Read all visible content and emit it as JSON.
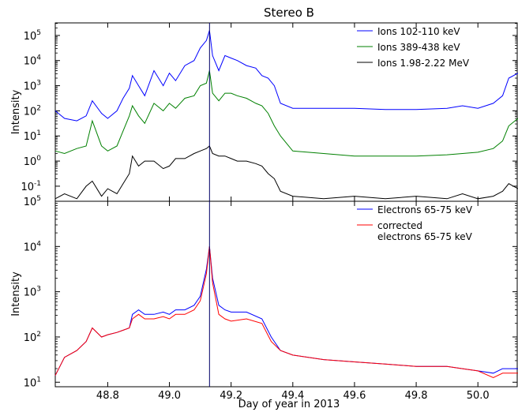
{
  "chart_data": {
    "title": "Stereo B",
    "xlabel": "Day of year in 2013",
    "x_range": [
      48.63,
      50.13
    ],
    "x_ticks": [
      "48.8",
      "49.0",
      "49.2",
      "49.4",
      "49.6",
      "49.8",
      "50.0"
    ],
    "x_tick_values": [
      48.8,
      49.0,
      49.2,
      49.4,
      49.6,
      49.8,
      50.0
    ],
    "vertical_marker_x": 49.13,
    "panels": [
      {
        "type": "line",
        "ylabel": "Intensity",
        "yscale": "log",
        "ylim_log10": [
          -1.6,
          5.5
        ],
        "y_ticks": [
          {
            "base": "10",
            "exp": "5",
            "log": 5
          },
          {
            "base": "10",
            "exp": "4",
            "log": 4
          },
          {
            "base": "10",
            "exp": "3",
            "log": 3
          },
          {
            "base": "10",
            "exp": "2",
            "log": 2
          },
          {
            "base": "10",
            "exp": "1",
            "log": 1
          },
          {
            "base": "10",
            "exp": "0",
            "log": 0
          },
          {
            "base": "10",
            "exp": "-1",
            "log": -1
          }
        ],
        "legend_position": "top-right",
        "series": [
          {
            "name": "Ions 102-110 keV",
            "color": "#0000ff",
            "x": [
              48.63,
              48.66,
              48.7,
              48.73,
              48.75,
              48.78,
              48.8,
              48.83,
              48.85,
              48.87,
              48.88,
              48.9,
              48.92,
              48.95,
              48.98,
              49.0,
              49.02,
              49.05,
              49.08,
              49.1,
              49.12,
              49.13,
              49.14,
              49.16,
              49.18,
              49.2,
              49.22,
              49.25,
              49.28,
              49.3,
              49.32,
              49.34,
              49.36,
              49.4,
              49.5,
              49.6,
              49.7,
              49.8,
              49.9,
              49.95,
              50.0,
              50.05,
              50.08,
              50.1,
              50.13
            ],
            "y_log10": [
              2.0,
              1.7,
              1.6,
              1.8,
              2.4,
              1.9,
              1.7,
              2.0,
              2.5,
              2.9,
              3.4,
              3.0,
              2.6,
              3.6,
              3.0,
              3.5,
              3.2,
              3.8,
              4.0,
              4.5,
              4.8,
              5.2,
              4.2,
              3.6,
              4.2,
              4.1,
              4.0,
              3.8,
              3.7,
              3.4,
              3.3,
              3.0,
              2.3,
              2.1,
              2.1,
              2.1,
              2.05,
              2.05,
              2.1,
              2.2,
              2.1,
              2.3,
              2.6,
              3.3,
              3.5
            ]
          },
          {
            "name": "Ions 389-438 keV",
            "color": "#008000",
            "x": [
              48.63,
              48.66,
              48.7,
              48.73,
              48.75,
              48.78,
              48.8,
              48.83,
              48.85,
              48.87,
              48.88,
              48.9,
              48.92,
              48.95,
              48.98,
              49.0,
              49.02,
              49.05,
              49.08,
              49.1,
              49.12,
              49.13,
              49.14,
              49.16,
              49.18,
              49.2,
              49.22,
              49.25,
              49.28,
              49.3,
              49.32,
              49.34,
              49.36,
              49.4,
              49.5,
              49.6,
              49.7,
              49.8,
              49.9,
              49.95,
              50.0,
              50.05,
              50.08,
              50.1,
              50.13
            ],
            "y_log10": [
              0.4,
              0.3,
              0.5,
              0.6,
              1.6,
              0.6,
              0.4,
              0.6,
              1.2,
              1.8,
              2.2,
              1.8,
              1.5,
              2.3,
              2.0,
              2.3,
              2.1,
              2.5,
              2.6,
              3.0,
              3.1,
              3.6,
              2.7,
              2.4,
              2.7,
              2.7,
              2.6,
              2.5,
              2.3,
              2.2,
              1.9,
              1.4,
              1.0,
              0.4,
              0.3,
              0.2,
              0.2,
              0.2,
              0.25,
              0.3,
              0.35,
              0.5,
              0.8,
              1.4,
              1.7
            ]
          },
          {
            "name": "Ions 1.98-2.22 MeV",
            "color": "#000000",
            "x": [
              48.63,
              48.66,
              48.7,
              48.73,
              48.75,
              48.78,
              48.8,
              48.83,
              48.85,
              48.87,
              48.88,
              48.9,
              48.92,
              48.95,
              48.98,
              49.0,
              49.02,
              49.05,
              49.08,
              49.1,
              49.12,
              49.13,
              49.14,
              49.16,
              49.18,
              49.2,
              49.22,
              49.25,
              49.28,
              49.3,
              49.32,
              49.34,
              49.36,
              49.4,
              49.5,
              49.6,
              49.7,
              49.8,
              49.9,
              49.95,
              50.0,
              50.05,
              50.08,
              50.1,
              50.13
            ],
            "y_log10": [
              -1.5,
              -1.3,
              -1.5,
              -1.0,
              -0.8,
              -1.4,
              -1.1,
              -1.3,
              -0.9,
              -0.5,
              0.2,
              -0.2,
              0.0,
              0.0,
              -0.3,
              -0.2,
              0.1,
              0.1,
              0.3,
              0.4,
              0.5,
              0.6,
              0.3,
              0.2,
              0.2,
              0.1,
              0.0,
              0.0,
              -0.1,
              -0.2,
              -0.5,
              -0.7,
              -1.2,
              -1.4,
              -1.5,
              -1.4,
              -1.5,
              -1.4,
              -1.5,
              -1.3,
              -1.5,
              -1.4,
              -1.2,
              -0.9,
              -1.1
            ]
          }
        ]
      },
      {
        "type": "line",
        "ylabel": "Intensity",
        "yscale": "log",
        "ylim_log10": [
          0.9,
          5.0
        ],
        "y_ticks": [
          {
            "base": "10",
            "exp": "5",
            "log": 5
          },
          {
            "base": "10",
            "exp": "4",
            "log": 4
          },
          {
            "base": "10",
            "exp": "3",
            "log": 3
          },
          {
            "base": "10",
            "exp": "2",
            "log": 2
          },
          {
            "base": "10",
            "exp": "1",
            "log": 1
          }
        ],
        "legend_position": "top-right",
        "series": [
          {
            "name": "Electrons 65-75 keV",
            "color": "#0000ff",
            "x": [
              48.63,
              48.66,
              48.7,
              48.73,
              48.75,
              48.78,
              48.8,
              48.83,
              48.85,
              48.87,
              48.88,
              48.9,
              48.92,
              48.95,
              48.98,
              49.0,
              49.02,
              49.05,
              49.08,
              49.1,
              49.12,
              49.13,
              49.14,
              49.16,
              49.18,
              49.2,
              49.25,
              49.3,
              49.33,
              49.36,
              49.4,
              49.5,
              49.6,
              49.7,
              49.8,
              49.9,
              49.95,
              50.0,
              50.05,
              50.08,
              50.1,
              50.13
            ],
            "y_log10": [
              1.15,
              1.55,
              1.7,
              1.9,
              2.2,
              2.0,
              2.05,
              2.1,
              2.15,
              2.2,
              2.5,
              2.6,
              2.5,
              2.5,
              2.55,
              2.5,
              2.6,
              2.6,
              2.7,
              2.9,
              3.5,
              4.0,
              3.3,
              2.7,
              2.6,
              2.55,
              2.55,
              2.4,
              2.0,
              1.7,
              1.6,
              1.5,
              1.45,
              1.4,
              1.35,
              1.35,
              1.3,
              1.25,
              1.2,
              1.3,
              1.3,
              1.3
            ]
          },
          {
            "name": "corrected electrons 65-75 keV",
            "label_lines": [
              "corrected",
              "electrons 65-75 keV"
            ],
            "color": "#ff0000",
            "x": [
              48.63,
              48.66,
              48.7,
              48.73,
              48.75,
              48.78,
              48.8,
              48.83,
              48.85,
              48.87,
              48.88,
              48.9,
              48.92,
              48.95,
              48.98,
              49.0,
              49.02,
              49.05,
              49.08,
              49.1,
              49.12,
              49.13,
              49.14,
              49.16,
              49.18,
              49.2,
              49.25,
              49.3,
              49.33,
              49.36,
              49.4,
              49.5,
              49.6,
              49.7,
              49.8,
              49.9,
              49.95,
              50.0,
              50.05,
              50.08,
              50.1,
              50.13
            ],
            "y_log10": [
              1.15,
              1.55,
              1.7,
              1.9,
              2.2,
              2.0,
              2.05,
              2.1,
              2.15,
              2.2,
              2.4,
              2.5,
              2.4,
              2.4,
              2.45,
              2.4,
              2.5,
              2.5,
              2.6,
              2.8,
              3.4,
              4.0,
              3.2,
              2.5,
              2.4,
              2.35,
              2.4,
              2.3,
              1.9,
              1.7,
              1.6,
              1.5,
              1.45,
              1.4,
              1.35,
              1.35,
              1.3,
              1.25,
              1.1,
              1.2,
              1.2,
              1.2
            ]
          }
        ]
      }
    ]
  }
}
